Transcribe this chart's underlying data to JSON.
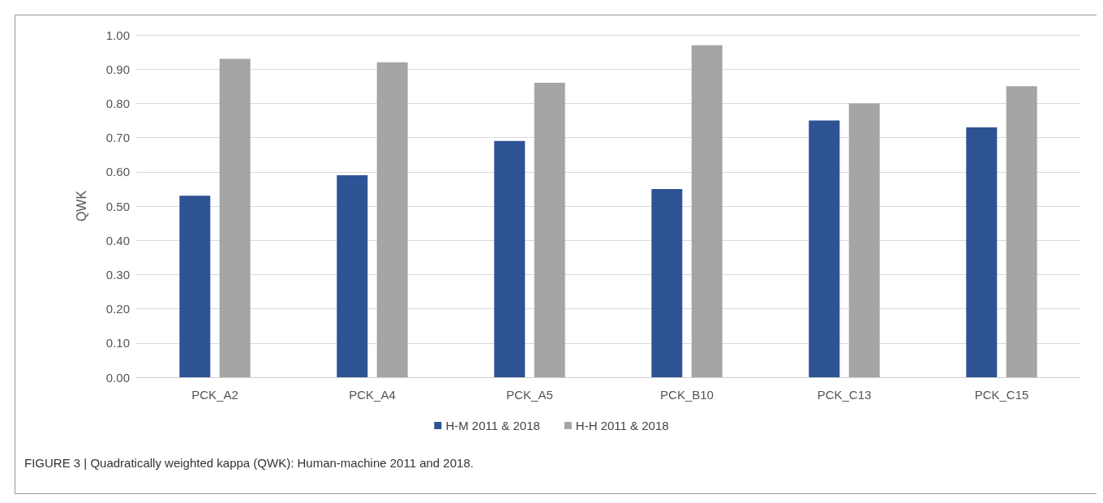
{
  "chart_data": {
    "type": "bar",
    "ylabel": "QWK",
    "categories": [
      "PCK_A2",
      "PCK_A4",
      "PCK_A5",
      "PCK_B10",
      "PCK_C13",
      "PCK_C15"
    ],
    "series": [
      {
        "name": "H-M 2011 & 2018",
        "color": "#2e5394",
        "values": [
          0.53,
          0.59,
          0.69,
          0.55,
          0.75,
          0.73
        ]
      },
      {
        "name": "H-H 2011 & 2018",
        "color": "#a5a5a5",
        "values": [
          0.93,
          0.92,
          0.86,
          0.97,
          0.8,
          0.85
        ]
      }
    ],
    "ylim": [
      0,
      1
    ],
    "yticks": [
      {
        "value": 0,
        "label": "0.00"
      },
      {
        "value": 0.1,
        "label": "0.10"
      },
      {
        "value": 0.2,
        "label": "0.20"
      },
      {
        "value": 0.3,
        "label": "0.30"
      },
      {
        "value": 0.4,
        "label": "0.40"
      },
      {
        "value": 0.5,
        "label": "0.50"
      },
      {
        "value": 0.6,
        "label": "0.60"
      },
      {
        "value": 0.7,
        "label": "0.70"
      },
      {
        "value": 0.8,
        "label": "0.80"
      },
      {
        "value": 0.9,
        "label": "0.90"
      },
      {
        "value": 1,
        "label": "1.00"
      }
    ],
    "grid": "y",
    "legend": "bottom",
    "annotations": [
      "FIGURE 3 | Quadratically weighted kappa (QWK): Human-machine 2011 and 2018."
    ]
  }
}
